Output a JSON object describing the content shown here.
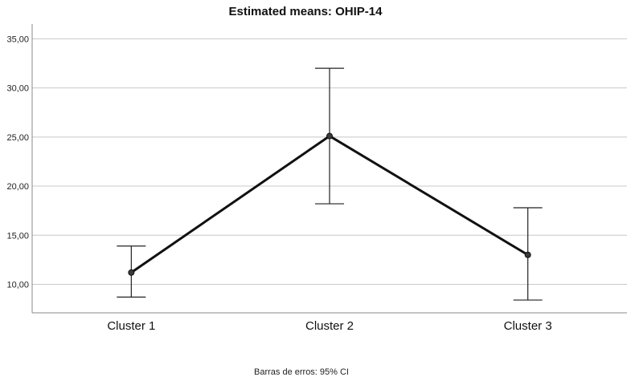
{
  "chart_data": {
    "type": "line",
    "title": "Estimated means: OHIP-14",
    "categories": [
      "Cluster 1",
      "Cluster 2",
      "Cluster 3"
    ],
    "series": [
      {
        "values": [
          11.2,
          25.1,
          13.0
        ],
        "ci_lower": [
          8.7,
          18.2,
          8.4
        ],
        "ci_upper": [
          13.9,
          32.0,
          17.8
        ]
      }
    ],
    "y_ticks": [
      "10,00",
      "15,00",
      "20,00",
      "25,00",
      "30,00",
      "35,00"
    ],
    "y_tick_values": [
      10,
      15,
      20,
      25,
      30,
      35
    ],
    "ylim": [
      7.1,
      36.5
    ],
    "grid": true,
    "footnote": "Barras de erros: 95% CI"
  },
  "colors": {
    "line": "#111111",
    "grid": "#c8c8c8",
    "axis": "#888888",
    "marker": "#3a3a3a"
  }
}
